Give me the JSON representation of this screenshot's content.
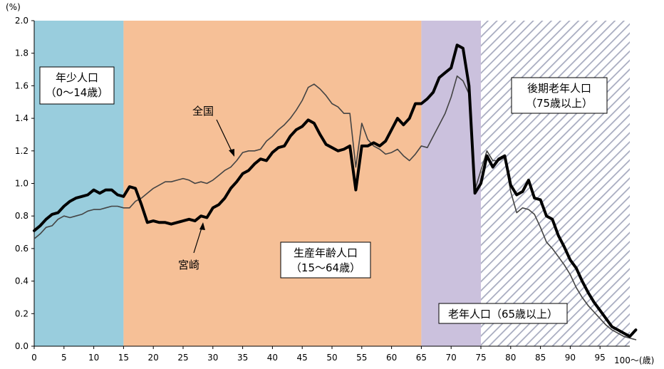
{
  "chart_data": {
    "type": "line",
    "y_unit": "(%)",
    "x_unit": "100〜(歳)",
    "ylim": [
      0,
      2.0
    ],
    "yticks": [
      "0.0",
      "0.2",
      "0.4",
      "0.6",
      "0.8",
      "1.0",
      "1.2",
      "1.4",
      "1.6",
      "1.8",
      "2.0"
    ],
    "xlim": [
      0,
      100
    ],
    "xticks": [
      "0",
      "5",
      "10",
      "15",
      "20",
      "25",
      "30",
      "35",
      "40",
      "45",
      "50",
      "55",
      "60",
      "65",
      "70",
      "75",
      "80",
      "85",
      "90",
      "95"
    ],
    "bands": [
      {
        "from": 0,
        "to": 15,
        "color": "#99cddd"
      },
      {
        "from": 15,
        "to": 65,
        "color": "#f6c097"
      },
      {
        "from": 65,
        "to": 75,
        "color": "#cbc1dd"
      },
      {
        "from": 75,
        "to": 100,
        "color": "#ffffff",
        "pattern": "diagonal-hatch"
      }
    ],
    "annotations": {
      "youth_line1": "年少人口",
      "youth_line2": "（0〜14歳）",
      "working_line1": "生産年齢人口",
      "working_line2": "（15〜64歳）",
      "old_label": "老年人口（65歳以上）",
      "late_line1": "後期老年人口",
      "late_line2": "（75歳以上）",
      "national_label": "全国",
      "miyazaki_label": "宮崎"
    },
    "series": [
      {
        "name": "宮崎",
        "color": "#000000",
        "width": 4,
        "values": [
          0.71,
          0.74,
          0.78,
          0.81,
          0.82,
          0.86,
          0.89,
          0.91,
          0.92,
          0.93,
          0.96,
          0.94,
          0.96,
          0.96,
          0.93,
          0.92,
          0.98,
          0.97,
          0.87,
          0.76,
          0.77,
          0.76,
          0.76,
          0.75,
          0.76,
          0.77,
          0.78,
          0.77,
          0.8,
          0.79,
          0.85,
          0.87,
          0.91,
          0.97,
          1.01,
          1.06,
          1.08,
          1.12,
          1.15,
          1.14,
          1.19,
          1.22,
          1.23,
          1.29,
          1.33,
          1.35,
          1.39,
          1.37,
          1.3,
          1.24,
          1.22,
          1.2,
          1.21,
          1.23,
          0.96,
          1.23,
          1.23,
          1.25,
          1.23,
          1.26,
          1.33,
          1.4,
          1.36,
          1.4,
          1.49,
          1.49,
          1.52,
          1.56,
          1.65,
          1.68,
          1.71,
          1.85,
          1.83,
          1.6,
          0.94,
          1.0,
          1.17,
          1.1,
          1.15,
          1.17,
          0.99,
          0.93,
          0.95,
          1.02,
          0.91,
          0.9,
          0.8,
          0.78,
          0.68,
          0.61,
          0.53,
          0.48,
          0.4,
          0.33,
          0.27,
          0.22,
          0.17,
          0.12,
          0.1,
          0.08,
          0.06,
          0.1
        ]
      },
      {
        "name": "全国",
        "color": "#444444",
        "width": 1.6,
        "values": [
          0.66,
          0.69,
          0.73,
          0.74,
          0.78,
          0.8,
          0.79,
          0.8,
          0.81,
          0.83,
          0.84,
          0.84,
          0.85,
          0.86,
          0.86,
          0.85,
          0.85,
          0.89,
          0.91,
          0.94,
          0.97,
          0.99,
          1.01,
          1.01,
          1.02,
          1.03,
          1.02,
          1.0,
          1.01,
          1.0,
          1.02,
          1.05,
          1.08,
          1.1,
          1.14,
          1.19,
          1.2,
          1.2,
          1.21,
          1.26,
          1.29,
          1.33,
          1.36,
          1.4,
          1.45,
          1.51,
          1.59,
          1.61,
          1.58,
          1.54,
          1.49,
          1.47,
          1.43,
          1.43,
          1.1,
          1.37,
          1.27,
          1.23,
          1.21,
          1.18,
          1.19,
          1.21,
          1.17,
          1.14,
          1.18,
          1.23,
          1.22,
          1.29,
          1.36,
          1.43,
          1.53,
          1.66,
          1.63,
          1.55,
          0.96,
          1.08,
          1.2,
          1.14,
          1.14,
          1.16,
          0.95,
          0.82,
          0.85,
          0.84,
          0.81,
          0.73,
          0.64,
          0.6,
          0.55,
          0.5,
          0.44,
          0.36,
          0.3,
          0.25,
          0.21,
          0.17,
          0.13,
          0.1,
          0.08,
          0.06,
          0.05,
          0.04
        ]
      }
    ]
  }
}
